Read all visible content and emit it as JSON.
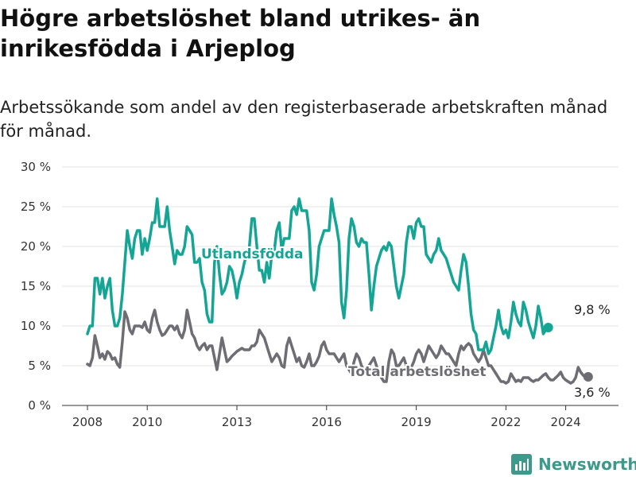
{
  "title": "Högre arbetslöshet bland utrikes- än inrikesfödda i Arjeplog",
  "subtitle": "Arbetssökande som andel av den registerbaserade arbetskraften månad för månad.",
  "brand": "Newsworthy",
  "colors": {
    "utlandsfodda": "#14a595",
    "total": "#6d6d73",
    "grid": "#e3e3e3",
    "brand": "#3d9a8b"
  },
  "chart_data": {
    "type": "line",
    "x_start": "2008-01",
    "x_end": "2024-09",
    "x_ticks": [
      {
        "value": 2008,
        "label": "2008"
      },
      {
        "value": 2010,
        "label": "2010"
      },
      {
        "value": 2013,
        "label": "2013"
      },
      {
        "value": 2016,
        "label": "2016"
      },
      {
        "value": 2019,
        "label": "2019"
      },
      {
        "value": 2022,
        "label": "2022"
      },
      {
        "value": 2024,
        "label": "2024"
      }
    ],
    "y_ticks": [
      {
        "value": 0,
        "label": "0 %"
      },
      {
        "value": 5,
        "label": "5 %"
      },
      {
        "value": 10,
        "label": "10 %"
      },
      {
        "value": 15,
        "label": "15 %"
      },
      {
        "value": 20,
        "label": "20 %"
      },
      {
        "value": 25,
        "label": "25 %"
      },
      {
        "value": 30,
        "label": "30 %"
      }
    ],
    "ylim": [
      0,
      30
    ],
    "grid": true,
    "series": [
      {
        "name": "Utlandsfödda",
        "end_label": "9,8 %",
        "values": [
          9.0,
          10.0,
          10.0,
          16.0,
          16.0,
          14.0,
          16.0,
          13.5,
          15.0,
          16.0,
          12.0,
          10.0,
          10.0,
          11.0,
          14.0,
          18.0,
          22.0,
          20.0,
          18.5,
          21.0,
          22.0,
          22.0,
          19.0,
          21.0,
          19.5,
          21.0,
          23.0,
          23.0,
          26.0,
          22.5,
          22.5,
          22.5,
          25.0,
          22.0,
          20.0,
          17.8,
          19.5,
          19.0,
          19.0,
          20.0,
          22.5,
          22.0,
          21.5,
          18.0,
          18.0,
          18.5,
          15.5,
          14.5,
          11.5,
          10.5,
          10.5,
          18.0,
          20.0,
          16.5,
          14.0,
          14.5,
          15.5,
          17.5,
          17.0,
          15.5,
          13.5,
          15.5,
          16.5,
          18.0,
          19.0,
          20.0,
          23.5,
          23.5,
          20.0,
          17.0,
          17.0,
          15.5,
          18.0,
          16.0,
          19.0,
          19.5,
          22.0,
          23.0,
          19.5,
          21.0,
          21.0,
          21.0,
          24.5,
          25.0,
          24.0,
          26.0,
          24.5,
          24.5,
          24.5,
          22.0,
          15.5,
          14.5,
          16.5,
          20.0,
          21.0,
          22.0,
          22.0,
          22.0,
          26.0,
          24.0,
          22.5,
          20.5,
          13.0,
          11.0,
          14.5,
          21.0,
          23.5,
          22.5,
          20.5,
          20.0,
          21.0,
          20.5,
          20.5,
          16.5,
          12.0,
          15.0,
          17.5,
          18.5,
          19.5,
          20.0,
          19.5,
          20.5,
          20.0,
          17.5,
          15.0,
          13.5,
          15.0,
          16.5,
          20.5,
          22.5,
          22.5,
          21.0,
          23.0,
          23.5,
          22.5,
          22.5,
          19.0,
          18.5,
          18.0,
          19.0,
          19.5,
          21.0,
          19.5,
          19.0,
          18.5,
          17.5,
          16.5,
          15.5,
          15.0,
          14.5,
          17.0,
          19.0,
          18.0,
          15.0,
          11.5,
          9.5,
          9.0,
          7.0,
          7.0,
          7.0,
          8.0,
          6.5,
          7.0,
          8.5,
          10.0,
          12.0,
          10.0,
          9.0,
          9.5,
          8.5,
          10.5,
          13.0,
          11.5,
          10.5,
          10.0,
          13.0,
          12.0,
          10.5,
          9.5,
          8.5,
          10.0,
          12.5,
          11.0,
          9.0,
          9.5,
          9.8
        ]
      },
      {
        "name": "Total arbetslöshet",
        "end_label": "3,6 %",
        "values": [
          5.2,
          5.0,
          6.0,
          8.8,
          7.5,
          6.0,
          6.5,
          5.8,
          6.8,
          6.5,
          5.8,
          6.0,
          5.2,
          4.8,
          8.0,
          11.8,
          11.0,
          9.5,
          9.0,
          10.0,
          10.0,
          10.0,
          9.8,
          10.5,
          9.5,
          9.2,
          11.0,
          12.0,
          10.5,
          9.5,
          8.8,
          9.0,
          9.5,
          10.0,
          10.0,
          9.5,
          10.0,
          9.0,
          8.5,
          9.5,
          12.0,
          10.5,
          9.0,
          8.5,
          7.5,
          7.0,
          7.5,
          7.8,
          7.0,
          7.5,
          7.5,
          6.0,
          4.5,
          6.5,
          8.5,
          7.0,
          5.5,
          5.8,
          6.2,
          6.5,
          6.8,
          7.0,
          7.2,
          7.0,
          7.0,
          7.0,
          7.5,
          7.5,
          8.0,
          9.5,
          9.0,
          8.5,
          7.5,
          6.5,
          5.5,
          6.0,
          6.5,
          6.0,
          5.0,
          4.8,
          7.5,
          8.5,
          7.5,
          6.5,
          5.5,
          6.0,
          5.0,
          4.8,
          5.5,
          6.5,
          5.0,
          5.0,
          5.5,
          6.2,
          7.5,
          8.0,
          7.0,
          6.5,
          6.5,
          6.5,
          6.0,
          5.5,
          6.0,
          6.5,
          5.0,
          4.5,
          4.0,
          5.5,
          6.5,
          6.0,
          5.0,
          4.5,
          4.5,
          5.0,
          5.5,
          6.0,
          5.0,
          4.0,
          3.5,
          3.0,
          3.0,
          5.5,
          7.0,
          6.5,
          5.0,
          5.0,
          5.5,
          6.0,
          5.0,
          4.8,
          4.8,
          5.5,
          6.5,
          7.0,
          6.5,
          5.5,
          6.5,
          7.5,
          7.0,
          6.5,
          6.0,
          6.5,
          7.5,
          7.0,
          6.5,
          6.5,
          6.0,
          5.5,
          5.0,
          6.5,
          7.5,
          7.0,
          7.5,
          7.8,
          7.5,
          6.5,
          6.0,
          5.5,
          6.0,
          7.0,
          6.0,
          5.0,
          5.0,
          4.5,
          4.0,
          3.5,
          3.0,
          3.0,
          2.8,
          3.0,
          4.0,
          3.5,
          3.0,
          3.2,
          3.0,
          3.5,
          3.5,
          3.5,
          3.2,
          3.0,
          3.2,
          3.2,
          3.5,
          3.8,
          4.0,
          3.5,
          3.2,
          3.2,
          3.5,
          3.8,
          4.2,
          3.5,
          3.2,
          3.0,
          2.8,
          3.0,
          3.5,
          4.8,
          4.2,
          3.8,
          3.5,
          3.6
        ]
      }
    ]
  }
}
